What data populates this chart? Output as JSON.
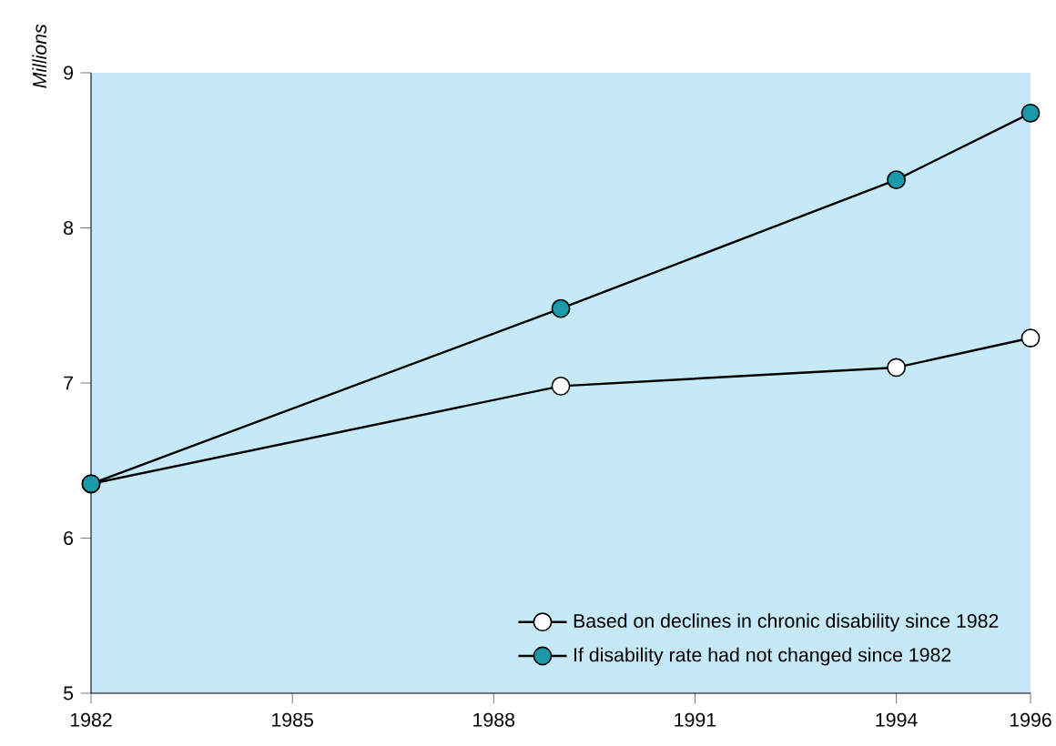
{
  "chart_data": {
    "type": "line",
    "ylabel": "Millions",
    "x": [
      1982,
      1989,
      1994,
      1996
    ],
    "series": [
      {
        "name": "Based on declines in chronic disability since 1982",
        "color": "#ffffff",
        "values": [
          6.35,
          6.98,
          7.1,
          7.29
        ]
      },
      {
        "name": "If disability rate had not changed since 1982",
        "color": "#1a9aa8",
        "values": [
          6.35,
          7.48,
          8.31,
          8.74
        ]
      }
    ],
    "xlim": [
      1982,
      1996
    ],
    "xticks": [
      1982,
      1985,
      1988,
      1991,
      1994,
      1996
    ],
    "ylim": [
      5,
      9
    ],
    "yticks": [
      5,
      6,
      7,
      8,
      9
    ],
    "grid": false,
    "legend": "bottom right",
    "marker": "circle",
    "line_style": "solid"
  }
}
